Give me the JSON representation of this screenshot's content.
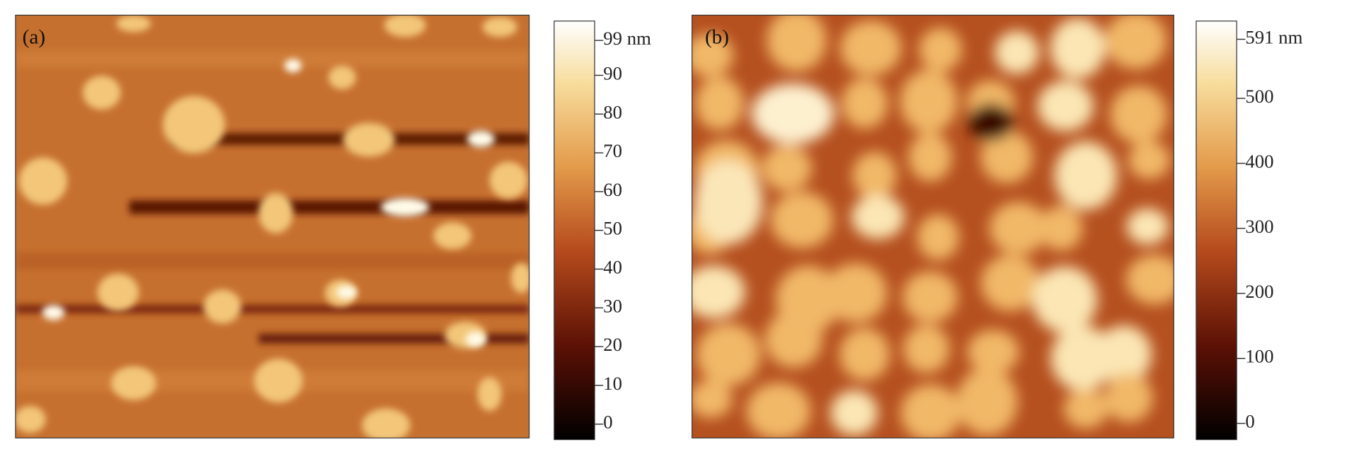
{
  "panels": [
    {
      "label": "(a)",
      "colorbar": {
        "lim": [
          -4,
          104
        ],
        "ticks": [
          {
            "value": 99,
            "label": "99 nm"
          },
          90,
          80,
          70,
          60,
          50,
          40,
          30,
          20,
          10,
          0
        ]
      }
    },
    {
      "label": "(b)",
      "colorbar": {
        "lim": [
          -25,
          619
        ],
        "ticks": [
          {
            "value": 591,
            "label": "591 nm"
          },
          500,
          400,
          300,
          200,
          100,
          0
        ]
      }
    }
  ]
}
